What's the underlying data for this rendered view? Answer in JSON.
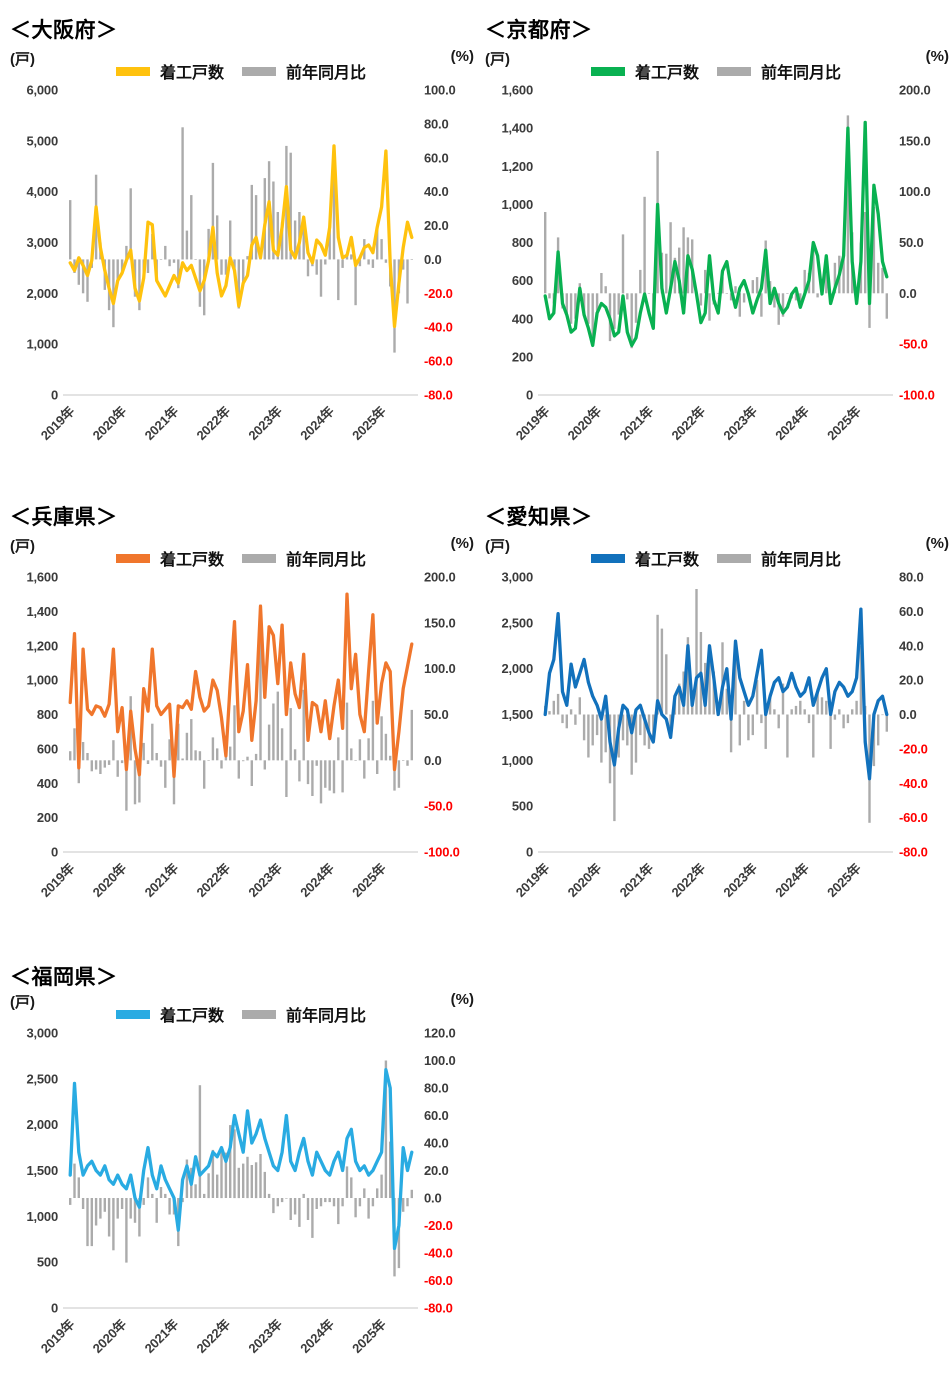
{
  "axis_units": {
    "left": "(戸)",
    "right": "(%)"
  },
  "colors": {
    "bar": "#ABABAB",
    "axis_line": "#D2D2D2",
    "tick_text": "#3B3B3B",
    "negative_tick": "#FF0000",
    "title_text": "#000000"
  },
  "chart_data": [
    {
      "type": "line+bar",
      "id": "osaka",
      "title": "＜大阪府＞",
      "line_color": "#FFC20E",
      "x_tick_labels": [
        "2019年",
        "2020年",
        "2021年",
        "2022年",
        "2023年",
        "2024年",
        "2025年"
      ],
      "x_range": [
        "2019-01",
        "2025-08"
      ],
      "x_unit": "month",
      "left_axis": {
        "min": 0,
        "max": 6000,
        "step": 1000
      },
      "right_axis": {
        "min": -80,
        "max": 100,
        "step": 20
      },
      "series": [
        {
          "name": "着工戸数",
          "type": "line",
          "axis": "left",
          "values": [
            2600,
            2450,
            2700,
            2550,
            2350,
            2650,
            3700,
            2900,
            2450,
            2100,
            1800,
            2250,
            2400,
            2650,
            2850,
            2100,
            1850,
            2300,
            3400,
            3350,
            2250,
            2100,
            1950,
            2150,
            2350,
            2200,
            2600,
            2450,
            2550,
            2300,
            2050,
            2250,
            2650,
            3300,
            2400,
            1950,
            2150,
            2700,
            2450,
            1750,
            2200,
            2350,
            2950,
            3100,
            2700,
            3350,
            3800,
            2850,
            2750,
            3300,
            4100,
            2850,
            2700,
            3000,
            3500,
            2800,
            2600,
            3050,
            2950,
            2750,
            3300,
            4900,
            3100,
            2700,
            2750,
            3100,
            2550,
            2700,
            2900,
            2950,
            2800,
            3300,
            3700,
            4800,
            2600,
            1350,
            2200,
            2900,
            3400,
            3100
          ]
        },
        {
          "name": "前年同月比",
          "type": "bar",
          "axis": "right",
          "values": [
            35,
            -8,
            -15,
            -20,
            -25,
            -5,
            50,
            10,
            -18,
            -30,
            -40,
            -12,
            -8,
            8,
            42,
            -22,
            -30,
            -12,
            -8,
            15,
            -10,
            0,
            8,
            -4,
            -2,
            -17,
            78,
            17,
            38,
            0,
            -28,
            -33,
            18,
            57,
            26,
            -9,
            -9,
            23,
            -6,
            -29,
            -14,
            2,
            44,
            38,
            2,
            48,
            58,
            46,
            28,
            22,
            67,
            63,
            23,
            28,
            19,
            -10,
            -4,
            -9,
            -22,
            -3,
            20,
            48,
            -24,
            -5,
            2,
            3,
            -27,
            -4,
            12,
            -3,
            -5,
            20,
            12,
            -2,
            -16,
            -55,
            -20,
            -6,
            -26,
            0
          ]
        }
      ]
    },
    {
      "type": "line+bar",
      "id": "kyoto",
      "title": "＜京都府＞",
      "line_color": "#09B151",
      "x_tick_labels": [
        "2019年",
        "2020年",
        "2021年",
        "2022年",
        "2023年",
        "2024年",
        "2025年"
      ],
      "x_range": [
        "2019-01",
        "2025-08"
      ],
      "x_unit": "month",
      "left_axis": {
        "min": 0,
        "max": 1600,
        "step": 200
      },
      "right_axis": {
        "min": -100,
        "max": 200,
        "step": 50
      },
      "series": [
        {
          "name": "着工戸数",
          "type": "line",
          "axis": "left",
          "values": [
            520,
            400,
            430,
            750,
            480,
            420,
            330,
            350,
            560,
            420,
            350,
            260,
            430,
            480,
            460,
            400,
            310,
            330,
            520,
            330,
            260,
            300,
            430,
            530,
            430,
            350,
            1000,
            560,
            430,
            560,
            700,
            600,
            430,
            730,
            660,
            530,
            380,
            430,
            730,
            500,
            430,
            650,
            700,
            560,
            460,
            560,
            600,
            530,
            430,
            500,
            560,
            760,
            480,
            560,
            480,
            430,
            460,
            530,
            560,
            460,
            530,
            600,
            800,
            730,
            530,
            730,
            480,
            560,
            630,
            730,
            1400,
            700,
            480,
            700,
            1430,
            480,
            1100,
            950,
            700,
            620
          ]
        },
        {
          "name": "前年同月比",
          "type": "bar",
          "axis": "right",
          "values": [
            80,
            -5,
            -10,
            55,
            -15,
            -20,
            -30,
            -25,
            10,
            -20,
            -30,
            -42,
            -17,
            20,
            7,
            -47,
            -35,
            -21,
            58,
            -6,
            -54,
            -29,
            23,
            95,
            0,
            -27,
            140,
            40,
            39,
            70,
            35,
            45,
            65,
            55,
            53,
            0,
            -12,
            23,
            -27,
            -11,
            0,
            16,
            0,
            -7,
            7,
            -23,
            -9,
            0,
            13,
            16,
            -23,
            52,
            12,
            -14,
            -31,
            -23,
            0,
            -5,
            -7,
            -13,
            23,
            20,
            43,
            -4,
            10,
            30,
            0,
            30,
            37,
            38,
            175,
            60,
            6,
            50,
            80,
            -34,
            85,
            30,
            25,
            -25
          ]
        }
      ]
    },
    {
      "type": "line+bar",
      "id": "hyogo",
      "title": "＜兵庫県＞",
      "line_color": "#F0762C",
      "x_tick_labels": [
        "2019年",
        "2020年",
        "2021年",
        "2022年",
        "2023年",
        "2024年",
        "2025年"
      ],
      "x_range": [
        "2019-01",
        "2025-08"
      ],
      "x_unit": "month",
      "left_axis": {
        "min": 0,
        "max": 1600,
        "step": 200
      },
      "right_axis": {
        "min": -100,
        "max": 200,
        "step": 50
      },
      "series": [
        {
          "name": "着工戸数",
          "type": "line",
          "axis": "left",
          "values": [
            870,
            1270,
            490,
            1180,
            830,
            800,
            850,
            840,
            790,
            860,
            1180,
            700,
            840,
            480,
            820,
            600,
            450,
            950,
            820,
            1180,
            850,
            800,
            830,
            860,
            440,
            850,
            840,
            880,
            830,
            1050,
            900,
            820,
            850,
            1000,
            940,
            780,
            560,
            980,
            1340,
            700,
            820,
            1090,
            650,
            880,
            1430,
            900,
            1310,
            1260,
            980,
            1320,
            800,
            1100,
            920,
            840,
            1150,
            650,
            870,
            850,
            700,
            880,
            660,
            850,
            1000,
            720,
            1500,
            950,
            1150,
            800,
            700,
            1050,
            1380,
            750,
            980,
            1100,
            1050,
            480,
            700,
            950,
            1080,
            1210
          ]
        },
        {
          "name": "前年同月比",
          "type": "bar",
          "axis": "right",
          "values": [
            10,
            35,
            -25,
            20,
            8,
            -12,
            -10,
            -15,
            -8,
            -5,
            22,
            -18,
            -3,
            -55,
            70,
            -48,
            -46,
            19,
            -4,
            40,
            8,
            -7,
            -30,
            23,
            -48,
            40,
            2,
            30,
            45,
            11,
            10,
            -31,
            0,
            25,
            13,
            -9,
            27,
            15,
            60,
            -20,
            -1,
            4,
            -28,
            7,
            170,
            -10,
            39,
            62,
            75,
            35,
            -40,
            57,
            12,
            -23,
            77,
            -26,
            -39,
            -6,
            -47,
            -30,
            -33,
            -36,
            25,
            -35,
            63,
            13,
            0,
            23,
            -20,
            24,
            65,
            -15,
            48,
            29,
            5,
            -33,
            -30,
            0,
            -6,
            55
          ]
        }
      ]
    },
    {
      "type": "line+bar",
      "id": "aichi",
      "title": "＜愛知県＞",
      "line_color": "#1271BC",
      "x_tick_labels": [
        "2019年",
        "2020年",
        "2021年",
        "2022年",
        "2023年",
        "2024年",
        "2025年"
      ],
      "x_range": [
        "2019-01",
        "2025-08"
      ],
      "x_unit": "month",
      "left_axis": {
        "min": 0,
        "max": 3000,
        "step": 500
      },
      "right_axis": {
        "min": -80,
        "max": 80,
        "step": 20
      },
      "series": [
        {
          "name": "着工戸数",
          "type": "line",
          "axis": "left",
          "values": [
            1500,
            1950,
            2100,
            2600,
            1750,
            1600,
            2050,
            1800,
            1950,
            2100,
            1850,
            1700,
            1600,
            1450,
            1700,
            1200,
            950,
            1350,
            1600,
            1550,
            1300,
            1550,
            1600,
            1450,
            1300,
            1200,
            1650,
            1500,
            1450,
            1250,
            1700,
            1800,
            1600,
            2250,
            1600,
            1900,
            1950,
            1600,
            2250,
            1900,
            1500,
            1800,
            2000,
            1450,
            2300,
            1900,
            1750,
            1600,
            1700,
            1950,
            2200,
            1500,
            1700,
            1850,
            1900,
            1750,
            1800,
            1950,
            1800,
            1700,
            1750,
            1900,
            1600,
            1750,
            1900,
            2000,
            1500,
            1750,
            1850,
            1800,
            1700,
            1750,
            1900,
            2650,
            1200,
            800,
            1500,
            1650,
            1700,
            1500
          ]
        },
        {
          "name": "前年同月比",
          "type": "bar",
          "axis": "right",
          "values": [
            5,
            2,
            8,
            12,
            -5,
            -8,
            3,
            -6,
            10,
            -15,
            -25,
            -18,
            -12,
            -28,
            -22,
            -40,
            -62,
            -25,
            -15,
            -18,
            -35,
            -28,
            -12,
            -18,
            -20,
            -15,
            58,
            50,
            35,
            -10,
            8,
            18,
            25,
            45,
            5,
            73,
            48,
            30,
            35,
            25,
            3,
            42,
            15,
            -22,
            42,
            -18,
            8,
            -15,
            -12,
            20,
            -5,
            -20,
            12,
            3,
            -8,
            18,
            -25,
            3,
            5,
            8,
            3,
            -5,
            -25,
            15,
            10,
            8,
            -20,
            -3,
            3,
            -8,
            -5,
            3,
            8,
            40,
            5,
            -63,
            -30,
            -18,
            0,
            -10
          ]
        }
      ]
    },
    {
      "type": "line+bar",
      "id": "fukuoka",
      "title": "＜福岡県＞",
      "line_color": "#29ABE2",
      "x_tick_labels": [
        "2019年",
        "2020年",
        "2021年",
        "2022年",
        "2023年",
        "2024年",
        "2025年"
      ],
      "x_range": [
        "2019-01",
        "2025-08"
      ],
      "x_unit": "month",
      "left_axis": {
        "min": 0,
        "max": 3000,
        "step": 500
      },
      "right_axis": {
        "min": -80,
        "max": 120,
        "step": 20
      },
      "series": [
        {
          "name": "着工戸数",
          "type": "line",
          "axis": "left",
          "values": [
            1450,
            2450,
            1700,
            1450,
            1550,
            1600,
            1500,
            1450,
            1550,
            1400,
            1350,
            1450,
            1350,
            1300,
            1450,
            1200,
            1100,
            1500,
            1750,
            1450,
            1300,
            1550,
            1400,
            1300,
            1200,
            850,
            1400,
            1550,
            1350,
            1650,
            1450,
            1500,
            1550,
            1700,
            1650,
            1750,
            1600,
            1750,
            2100,
            1900,
            1700,
            2150,
            1800,
            1900,
            2050,
            1850,
            1700,
            1550,
            1500,
            1700,
            2100,
            1600,
            1500,
            1700,
            1850,
            1600,
            1450,
            1700,
            1600,
            1500,
            1450,
            1600,
            1700,
            1500,
            1850,
            1950,
            1600,
            1500,
            1550,
            1450,
            1500,
            1600,
            1700,
            2600,
            2400,
            650,
            900,
            1750,
            1500,
            1700
          ]
        },
        {
          "name": "前年同月比",
          "type": "bar",
          "axis": "right",
          "values": [
            -5,
            25,
            15,
            -8,
            -35,
            -35,
            -20,
            -15,
            -10,
            -28,
            -38,
            -15,
            -8,
            -47,
            -15,
            -18,
            -28,
            -5,
            15,
            3,
            -18,
            8,
            3,
            -12,
            -12,
            -35,
            -3,
            28,
            22,
            10,
            82,
            3,
            18,
            35,
            17,
            34,
            33,
            53,
            50,
            22,
            25,
            30,
            24,
            26,
            32,
            19,
            3,
            -11,
            -6,
            -3,
            0,
            -16,
            -12,
            -21,
            3,
            -16,
            -29,
            -8,
            -6,
            -3,
            -3,
            -6,
            -19,
            -6,
            23,
            15,
            -14,
            -6,
            7,
            -15,
            -6,
            7,
            17,
            100,
            41,
            -57,
            -51,
            -10,
            -6,
            6
          ]
        }
      ]
    }
  ]
}
